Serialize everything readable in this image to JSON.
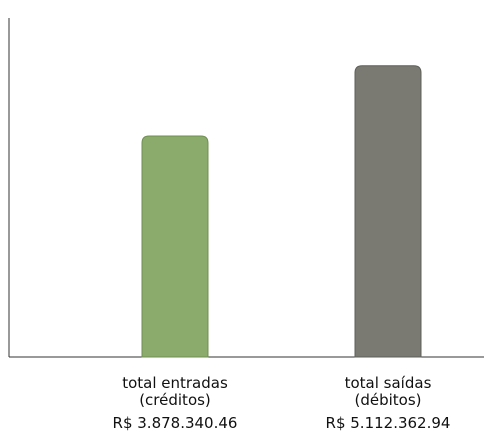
{
  "chart_data": {
    "type": "bar",
    "categories": [
      {
        "line1": "total entradas",
        "line2": "(créditos)",
        "value_label": "R$ 3.878.340.46"
      },
      {
        "line1": "total saídas",
        "line2": "(débitos)",
        "value_label": "R$ 5.112.362.94"
      }
    ],
    "values": [
      3878340.46,
      5112362.94
    ],
    "ylim": [
      0,
      5950000
    ],
    "grid": false,
    "legend": "none"
  },
  "colors": {
    "bar_1": "#8aab6b",
    "bar_1_stroke": "#6f8f52",
    "bar_2": "#7a7a73",
    "bar_2_stroke": "#5f5f59",
    "axis": "#333333"
  }
}
